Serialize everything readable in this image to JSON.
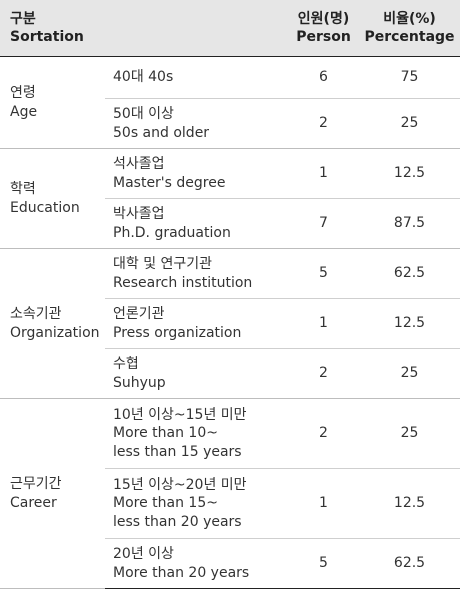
{
  "header": {
    "col1": [
      "구분",
      "Sortation"
    ],
    "col3": [
      "인원(명)",
      "Person"
    ],
    "col4": [
      "비율(%)",
      "Percentage"
    ]
  },
  "groups": [
    {
      "label": [
        "연령",
        "Age"
      ],
      "rows": [
        {
          "item": [
            "40대  40s"
          ],
          "person": "6",
          "percentage": "75"
        },
        {
          "item": [
            "50대 이상",
            "50s and older"
          ],
          "person": "2",
          "percentage": "25"
        }
      ]
    },
    {
      "label": [
        "학력",
        "Education"
      ],
      "rows": [
        {
          "item": [
            "석사졸업",
            "Master's degree"
          ],
          "person": "1",
          "percentage": "12.5"
        },
        {
          "item": [
            "박사졸업",
            "Ph.D. graduation"
          ],
          "person": "7",
          "percentage": "87.5"
        }
      ]
    },
    {
      "label": [
        "소속기관",
        "Organization"
      ],
      "rows": [
        {
          "item": [
            "대학 및 연구기관",
            "Research institution"
          ],
          "person": "5",
          "percentage": "62.5"
        },
        {
          "item": [
            "언론기관",
            "Press organization"
          ],
          "person": "1",
          "percentage": "12.5"
        },
        {
          "item": [
            "수협",
            "Suhyup"
          ],
          "person": "2",
          "percentage": "25"
        }
      ]
    },
    {
      "label": [
        "근무기간",
        "Career"
      ],
      "rows": [
        {
          "item": [
            "10년 이상~15년 미만",
            "More than 10~",
            "less than 15 years"
          ],
          "person": "2",
          "percentage": "25"
        },
        {
          "item": [
            "15년 이상~20년 미만",
            "More than 15~",
            "less than 20 years"
          ],
          "person": "1",
          "percentage": "12.5"
        },
        {
          "item": [
            "20년 이상",
            "More than 20 years"
          ],
          "person": "5",
          "percentage": "62.5"
        }
      ]
    }
  ]
}
